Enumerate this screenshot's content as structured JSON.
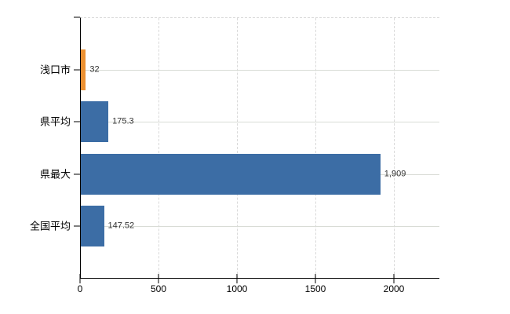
{
  "chart_data": {
    "type": "bar",
    "orientation": "horizontal",
    "title": "",
    "xlabel": "",
    "ylabel": "",
    "categories": [
      "浅口市",
      "県平均",
      "県最大",
      "全国平均"
    ],
    "values": [
      32,
      175.3,
      1909,
      147.52
    ],
    "value_labels": [
      "32",
      "175.3",
      "1,909",
      "147.52"
    ],
    "bar_colors": [
      "#ec9132",
      "#3c6da5",
      "#3c6da5",
      "#3c6da5"
    ],
    "xlim": [
      0,
      2290
    ],
    "x_ticks": [
      0,
      500,
      1000,
      1500,
      2000
    ],
    "x_tick_labels": [
      "0",
      "500",
      "1000",
      "1500",
      "2000"
    ],
    "grid": {
      "vertical": "dashed",
      "horizontal": "solid",
      "top_border": "dashed"
    },
    "legend": "none"
  },
  "colors": {
    "background": "#ffffff",
    "axis": "#000000",
    "gridline": "#d9d9d9",
    "bar_blue": "#3c6da5",
    "bar_orange": "#ec9132",
    "category_text": "#000000",
    "value_text": "#333333",
    "tick_text": "#000000"
  }
}
